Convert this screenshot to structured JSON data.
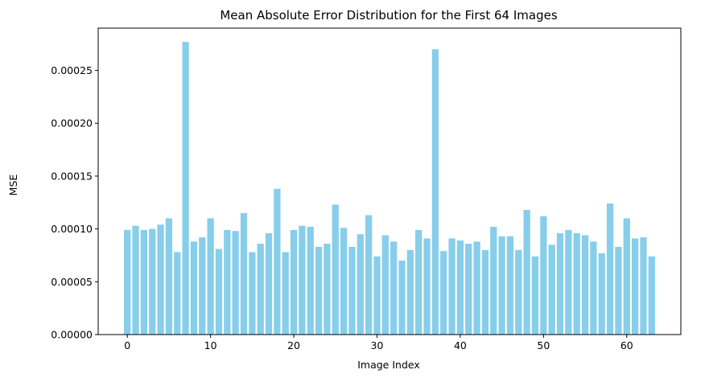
{
  "chart_data": {
    "type": "bar",
    "title": "Mean Absolute Error Distribution for the First 64 Images",
    "xlabel": "Image Index",
    "ylabel": "MSE",
    "xlim": [
      -3.5,
      66.5
    ],
    "ylim": [
      0,
      0.00029
    ],
    "x_ticks": [
      0,
      10,
      20,
      30,
      40,
      50,
      60
    ],
    "x_tick_labels": [
      "0",
      "10",
      "20",
      "30",
      "40",
      "50",
      "60"
    ],
    "y_ticks": [
      0,
      5e-05,
      0.0001,
      0.00015,
      0.0002,
      0.00025
    ],
    "y_tick_labels": [
      "0.00000",
      "0.00005",
      "0.00010",
      "0.00015",
      "0.00020",
      "0.00025"
    ],
    "grid": false,
    "bar_color": "#87CEEB",
    "x": [
      0,
      1,
      2,
      3,
      4,
      5,
      6,
      7,
      8,
      9,
      10,
      11,
      12,
      13,
      14,
      15,
      16,
      17,
      18,
      19,
      20,
      21,
      22,
      23,
      24,
      25,
      26,
      27,
      28,
      29,
      30,
      31,
      32,
      33,
      34,
      35,
      36,
      37,
      38,
      39,
      40,
      41,
      42,
      43,
      44,
      45,
      46,
      47,
      48,
      49,
      50,
      51,
      52,
      53,
      54,
      55,
      56,
      57,
      58,
      59,
      60,
      61,
      62,
      63
    ],
    "values": [
      9.9e-05,
      0.000103,
      9.9e-05,
      0.0001,
      0.000104,
      0.00011,
      7.8e-05,
      0.000277,
      8.8e-05,
      9.2e-05,
      0.00011,
      8.1e-05,
      9.9e-05,
      9.8e-05,
      0.000115,
      7.8e-05,
      8.6e-05,
      9.6e-05,
      0.000138,
      7.8e-05,
      9.9e-05,
      0.000103,
      0.000102,
      8.3e-05,
      8.6e-05,
      0.000123,
      0.000101,
      8.3e-05,
      9.5e-05,
      0.000113,
      7.4e-05,
      9.4e-05,
      8.8e-05,
      7e-05,
      8e-05,
      9.9e-05,
      9.1e-05,
      0.00027,
      7.9e-05,
      9.1e-05,
      8.9e-05,
      8.6e-05,
      8.8e-05,
      8e-05,
      0.000102,
      9.3e-05,
      9.3e-05,
      8e-05,
      0.000118,
      7.4e-05,
      0.000112,
      8.5e-05,
      9.6e-05,
      9.9e-05,
      9.6e-05,
      9.4e-05,
      8.8e-05,
      7.7e-05,
      0.000124,
      8.3e-05,
      0.00011,
      9.1e-05,
      9.2e-05,
      7.4e-05
    ]
  }
}
